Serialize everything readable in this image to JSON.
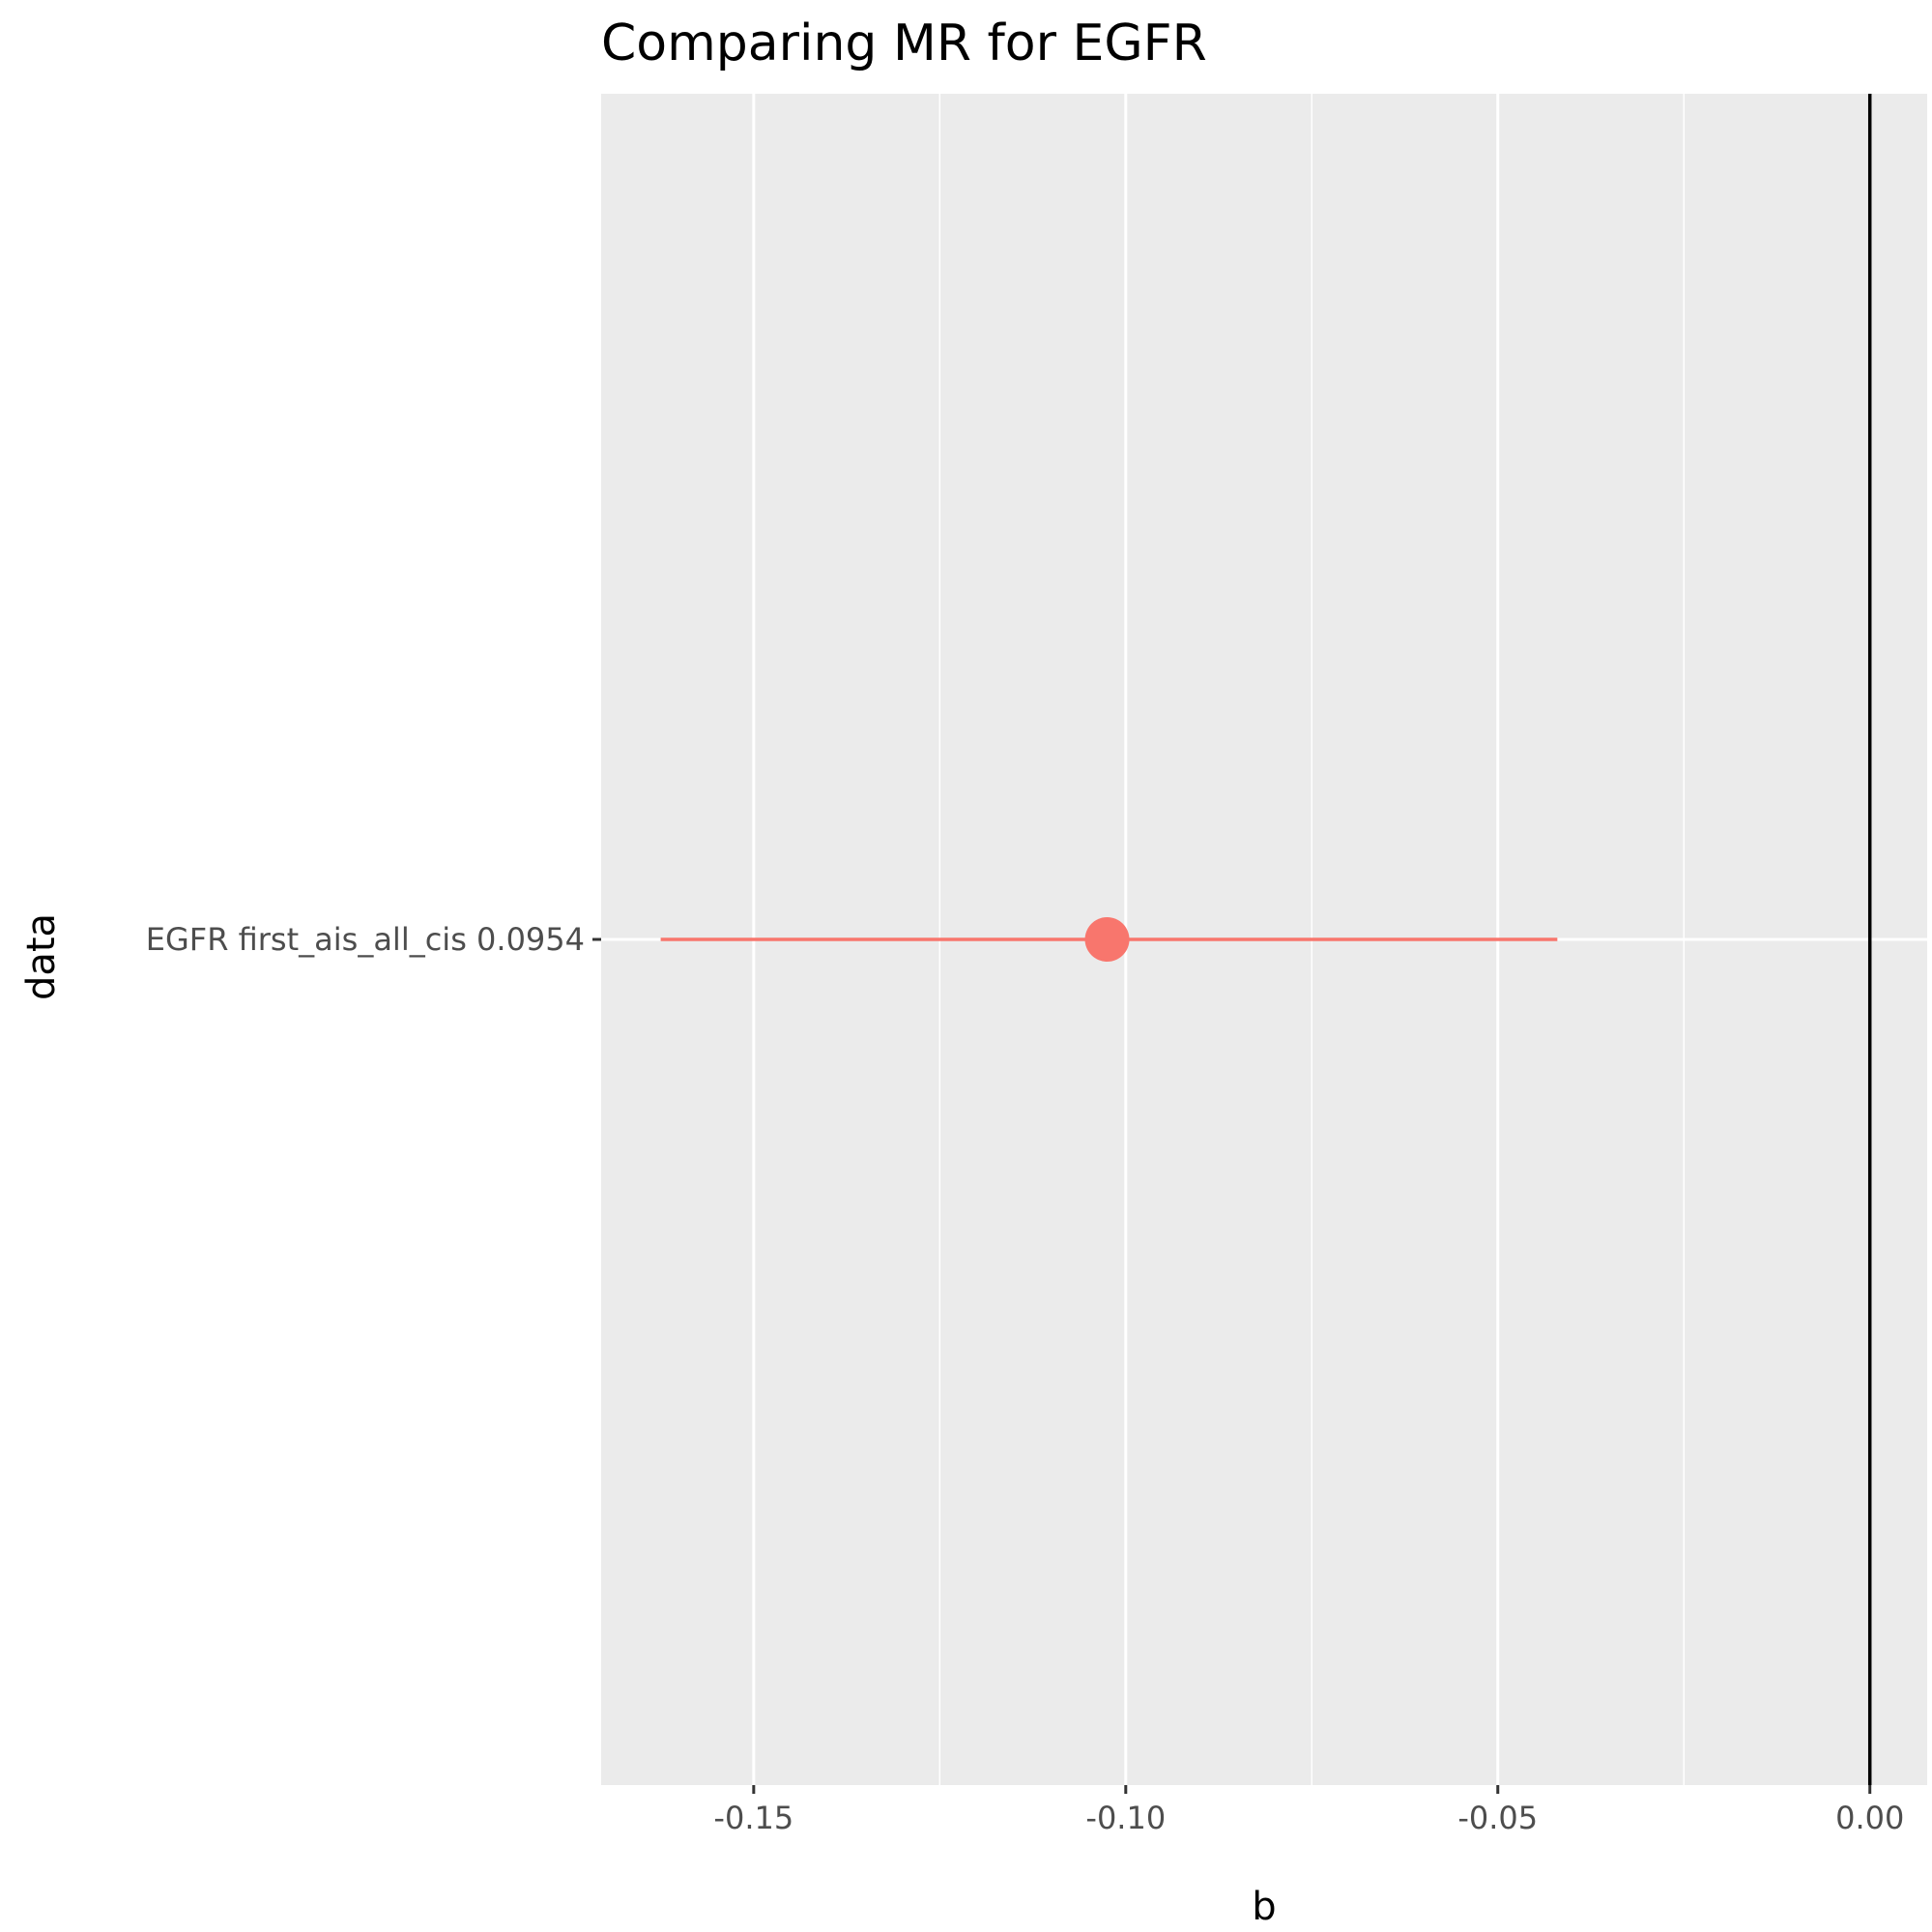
{
  "chart_data": {
    "type": "scatter",
    "title": "Comparing MR for EGFR",
    "xlabel": "b",
    "ylabel": "data",
    "xlim": [
      -0.1705,
      0.0077
    ],
    "x_ticks": [
      "-0.15",
      "-0.10",
      "-0.05",
      "0.00"
    ],
    "x_tick_values": [
      -0.15,
      -0.1,
      -0.05,
      0.0
    ],
    "categories": [
      "EGFR first_ais_all_cis 0.0954"
    ],
    "series": [
      {
        "values": [
          {
            "category": "EGFR first_ais_all_cis 0.0954",
            "b": -0.1025,
            "lo": -0.1625,
            "hi": -0.042
          }
        ]
      }
    ],
    "reference_line_x": 0,
    "grid": true,
    "legend": "none"
  },
  "colors": {
    "panel": "#EBEBEB",
    "grid": "#FFFFFF",
    "point": "#F8766D",
    "reference_line": "#000000"
  }
}
